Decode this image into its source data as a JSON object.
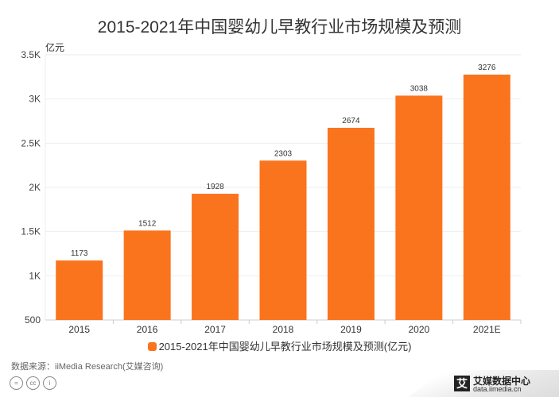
{
  "chart_data": {
    "type": "bar",
    "title": "2015-2021年中国婴幼儿早教行业市场规模及预测",
    "ylabel": "亿元",
    "xlabel": "",
    "categories": [
      "2015",
      "2016",
      "2017",
      "2018",
      "2019",
      "2020",
      "2021E"
    ],
    "series": [
      {
        "name": "2015-2021年中国婴幼儿早教行业市场规模及预测(亿元)",
        "values": [
          1173,
          1512,
          1928,
          2303,
          2674,
          3038,
          3276
        ],
        "color": "#FA741E"
      }
    ],
    "ylim": [
      500,
      3500
    ],
    "yticks": [
      500,
      1000,
      1500,
      2000,
      2500,
      3000,
      3500
    ],
    "ytick_labels": [
      "500",
      "1K",
      "1.5K",
      "2K",
      "2.5K",
      "3K",
      "3.5K"
    ],
    "grid": true,
    "legend": "bottom"
  },
  "footer": {
    "source": "数据来源：iiMedia Research(艾媒咨询)",
    "brand_name": "艾媒数据中心",
    "brand_url": "data.iimedia.cn",
    "brand_logo": "艾"
  }
}
